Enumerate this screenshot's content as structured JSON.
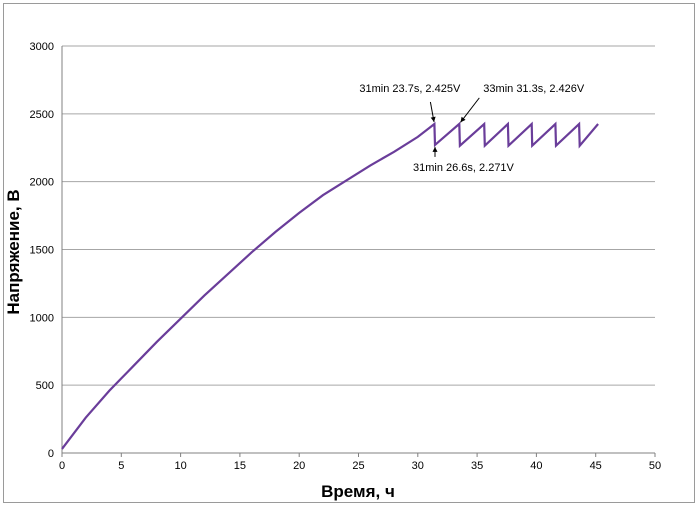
{
  "chart_data": {
    "type": "line",
    "xlabel": "Время, ч",
    "ylabel": "Напряжение, В",
    "xlim": [
      0,
      50
    ],
    "ylim": [
      0,
      3000
    ],
    "xticks": [
      0,
      5,
      10,
      15,
      20,
      25,
      30,
      35,
      40,
      45,
      50
    ],
    "yticks": [
      0,
      500,
      1000,
      1500,
      2000,
      2500,
      3000
    ],
    "grid": "horizontal",
    "series_color": "#6a3d9a",
    "series": [
      {
        "x": [
          0,
          2,
          4,
          5,
          6,
          8,
          10,
          12,
          14,
          16,
          18,
          20,
          22,
          24,
          26,
          28,
          30,
          31.4,
          31.45,
          33.5,
          33.55,
          35.6,
          35.65,
          37.6,
          37.65,
          39.6,
          39.65,
          41.6,
          41.65,
          43.6,
          43.65,
          45.2
        ],
        "y": [
          30,
          260,
          460,
          550,
          640,
          820,
          990,
          1160,
          1320,
          1480,
          1630,
          1770,
          1900,
          2010,
          2120,
          2220,
          2330,
          2425,
          2271,
          2426,
          2265,
          2425,
          2265,
          2425,
          2265,
          2425,
          2265,
          2425,
          2265,
          2425,
          2265,
          2425
        ]
      }
    ],
    "annotations": [
      {
        "text": "31min 23.7s, 2.425V",
        "x": 31.4,
        "y": 2425
      },
      {
        "text": "33min 31.3s, 2.426V",
        "x": 33.5,
        "y": 2426
      },
      {
        "text": "31min 26.6s, 2.271V",
        "x": 31.45,
        "y": 2271
      }
    ]
  }
}
